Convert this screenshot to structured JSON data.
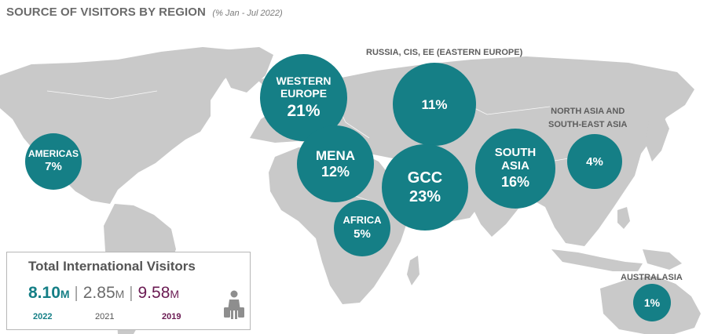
{
  "header": {
    "title": "SOURCE OF VISITORS BY REGION",
    "subtitle": "(% Jan - Jul 2022)"
  },
  "regions": {
    "americas": {
      "name": "AMERICAS",
      "value": "7%"
    },
    "western_europe": {
      "name": "WESTERN EUROPE",
      "value": "21%"
    },
    "russia": {
      "name": "RUSSIA, CIS, EE (EASTERN EUROPE)",
      "value": "11%"
    },
    "mena": {
      "name": "MENA",
      "value": "12%"
    },
    "gcc": {
      "name": "GCC",
      "value": "23%"
    },
    "africa": {
      "name": "AFRICA",
      "value": "5%"
    },
    "south_asia": {
      "name": "SOUTH ASIA",
      "value": "16%"
    },
    "north_asia": {
      "name_line1": "NORTH ASIA AND",
      "name_line2": "SOUTH-EAST ASIA",
      "value": "4%"
    },
    "australasia": {
      "name": "AUSTRALASIA",
      "value": "1%"
    }
  },
  "totals": {
    "title": "Total International Visitors",
    "y2022": {
      "value": "8.10",
      "unit": "M",
      "year": "2022"
    },
    "y2021": {
      "value": "2.85",
      "unit": "M",
      "year": "2021"
    },
    "y2019": {
      "value": "9.58",
      "unit": "M",
      "year": "2019"
    }
  },
  "icons": {
    "traveler": "traveler-luggage-icon"
  },
  "colors": {
    "bubble": "#157f86",
    "land": "#c9c9c9",
    "year_2022": "#157f86",
    "year_2019": "#6a1a52"
  }
}
